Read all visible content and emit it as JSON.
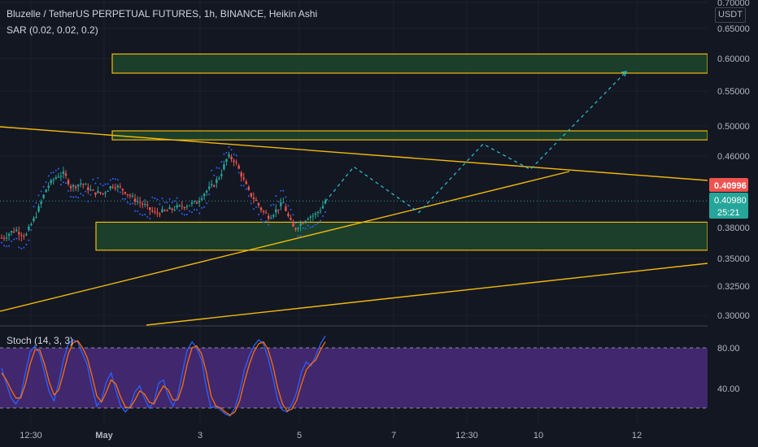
{
  "header": {
    "symbol_line": "Bluzelle / TetherUS PERPETUAL FUTURES, 1h, BINANCE, Heikin Ashi",
    "indicator_line": "SAR (0.02, 0.02, 0.2)",
    "stoch_line": "Stoch (14, 3, 3)",
    "currency": "USDT"
  },
  "colors": {
    "background": "#131722",
    "bull": "#26a69a",
    "bear": "#ef5350",
    "sar": "#2962ff",
    "trendline": "#f0b90b",
    "zone_fill": "#1f4d2e",
    "projection": "#26c6da",
    "stoch_k": "#2962ff",
    "stoch_d": "#ff6d00",
    "stoch_band": "#4a2a7a",
    "axis_text": "#b2b5be",
    "grid": "#1e222d"
  },
  "chart_data": [
    {
      "type": "candlestick",
      "title": "Bluzelle / TetherUS PERPETUAL FUTURES, 1h, BINANCE, Heikin Ashi",
      "y_axis_ticks": [
        "0.70000",
        "0.65000",
        "0.60000",
        "0.55000",
        "0.50000",
        "0.46000",
        "0.38000",
        "0.35000",
        "0.32500",
        "0.30000"
      ],
      "x_axis_ticks": [
        "12:30",
        "May",
        "3",
        "5",
        "7",
        "12:30",
        "10",
        "12"
      ],
      "ylim": [
        0.285,
        0.7
      ],
      "last_price_label": "0.40996",
      "current_price_label": "0.40980",
      "countdown_label": "25:21",
      "price_path": [
        [
          0,
          0.37
        ],
        [
          0.02,
          0.378
        ],
        [
          0.035,
          0.372
        ],
        [
          0.05,
          0.395
        ],
        [
          0.065,
          0.425
        ],
        [
          0.08,
          0.438
        ],
        [
          0.09,
          0.44
        ],
        [
          0.1,
          0.425
        ],
        [
          0.115,
          0.43
        ],
        [
          0.13,
          0.42
        ],
        [
          0.145,
          0.418
        ],
        [
          0.16,
          0.428
        ],
        [
          0.175,
          0.422
        ],
        [
          0.19,
          0.412
        ],
        [
          0.205,
          0.405
        ],
        [
          0.22,
          0.396
        ],
        [
          0.235,
          0.398
        ],
        [
          0.25,
          0.402
        ],
        [
          0.265,
          0.405
        ],
        [
          0.28,
          0.408
        ],
        [
          0.29,
          0.418
        ],
        [
          0.305,
          0.428
        ],
        [
          0.315,
          0.44
        ],
        [
          0.325,
          0.46
        ],
        [
          0.335,
          0.455
        ],
        [
          0.345,
          0.438
        ],
        [
          0.355,
          0.42
        ],
        [
          0.365,
          0.41
        ],
        [
          0.375,
          0.398
        ],
        [
          0.385,
          0.392
        ],
        [
          0.395,
          0.4
        ],
        [
          0.405,
          0.408
        ],
        [
          0.41,
          0.395
        ],
        [
          0.42,
          0.378
        ],
        [
          0.43,
          0.385
        ],
        [
          0.44,
          0.392
        ],
        [
          0.45,
          0.394
        ],
        [
          0.46,
          0.402
        ],
        [
          0.465,
          0.41
        ]
      ],
      "support_resistance_zones": [
        {
          "low": 0.5775,
          "high": 0.6075
        },
        {
          "low": 0.4815,
          "high": 0.4935
        },
        {
          "low": 0.358,
          "high": 0.386
        }
      ],
      "indicator": {
        "name": "SAR (0.02, 0.02, 0.2)"
      }
    },
    {
      "type": "line",
      "title": "Stoch (14, 3, 3)",
      "y_axis_ticks": [
        "80.00",
        "40.00"
      ],
      "ylim": [
        0,
        100
      ],
      "bands": [
        20,
        80
      ],
      "series": [
        {
          "values": [
            60,
            44,
            30,
            24,
            32,
            55,
            76,
            82,
            74,
            55,
            36,
            27,
            45,
            68,
            84,
            88,
            86,
            74,
            63,
            40,
            22,
            28,
            46,
            55,
            38,
            22,
            16,
            22,
            36,
            42,
            30,
            20,
            26,
            45,
            48,
            32,
            22,
            32,
            56,
            78,
            86,
            80,
            68,
            40,
            20,
            22,
            18,
            14,
            12,
            20,
            36,
            58,
            72,
            82,
            88,
            84,
            70,
            50,
            28,
            18,
            16,
            24,
            36,
            56,
            66,
            62,
            72,
            84,
            92
          ]
        },
        {
          "values": [
            55,
            48,
            38,
            30,
            30,
            44,
            64,
            78,
            78,
            64,
            46,
            33,
            38,
            55,
            74,
            85,
            87,
            80,
            70,
            52,
            32,
            26,
            36,
            48,
            44,
            31,
            21,
            20,
            28,
            37,
            34,
            26,
            24,
            34,
            42,
            38,
            28,
            28,
            42,
            64,
            80,
            82,
            74,
            56,
            32,
            22,
            20,
            16,
            13,
            16,
            27,
            46,
            63,
            76,
            84,
            86,
            78,
            62,
            40,
            24,
            17,
            19,
            28,
            44,
            58,
            64,
            68,
            78,
            86
          ]
        }
      ]
    }
  ]
}
